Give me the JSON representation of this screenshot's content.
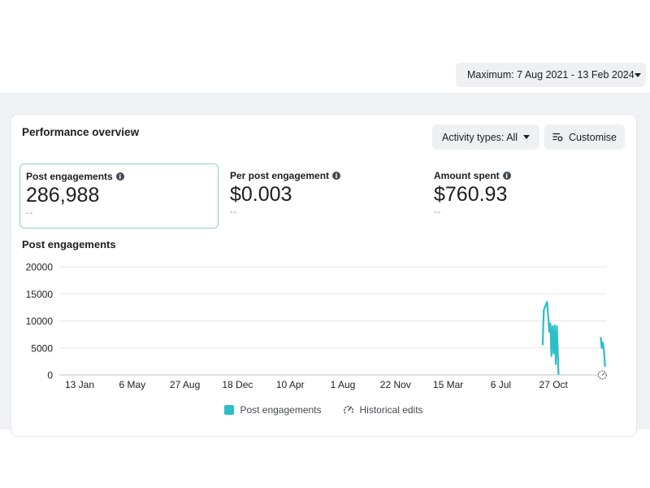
{
  "date_range": {
    "label": "Maximum: 7 Aug 2021 - 13 Feb 2024"
  },
  "card": {
    "title": "Performance overview",
    "activity_button": "Activity types: All",
    "customise_button": "Customise"
  },
  "metrics": [
    {
      "label": "Post engagements",
      "value": "286,988",
      "compare": "--"
    },
    {
      "label": "Per post engagement",
      "value": "$0.003",
      "compare": "--"
    },
    {
      "label": "Amount spent",
      "value": "$760.93",
      "compare": "--"
    }
  ],
  "chart_data": {
    "type": "line",
    "title": "Post engagements",
    "ylim": [
      0,
      20000
    ],
    "y_ticks": [
      "20000",
      "15000",
      "10000",
      "5000",
      "0"
    ],
    "x_ticks": [
      "13 Jan",
      "6 May",
      "27 Aug",
      "18 Dec",
      "10 Apr",
      "1 Aug",
      "22 Nov",
      "15 Mar",
      "6 Jul",
      "27 Oct"
    ],
    "grid": true,
    "legend_position": "bottom",
    "series": [
      {
        "name": "Post engagements",
        "color": "#2bbfc8",
        "segments": [
          {
            "x": [
              0.884,
              0.886,
              0.888,
              0.89,
              0.892,
              0.894,
              0.896,
              0.898,
              0.9,
              0.902,
              0.904,
              0.906,
              0.908,
              0.91,
              0.912,
              0.913
            ],
            "y": [
              5500,
              12000,
              12500,
              13000,
              13500,
              11000,
              8000,
              9500,
              3500,
              9000,
              4000,
              9200,
              2000,
              9000,
              3000,
              0
            ]
          },
          {
            "x": [
              0.99,
              0.992,
              0.994,
              0.996,
              0.998
            ],
            "y": [
              7000,
              5000,
              6000,
              4500,
              1500
            ]
          }
        ]
      }
    ],
    "historical_edits": [
      {
        "x": 0.993
      }
    ]
  },
  "legend": {
    "post_engagements": "Post engagements",
    "historical_edits": "Historical edits"
  },
  "colors": {
    "accent": "#2bbfc8",
    "selected_border": "#8ecfd6",
    "background_band": "#f0f2f5"
  },
  "icons": {
    "info": "info-icon",
    "customise": "sliders-icon",
    "historical": "history-gauge-icon"
  }
}
